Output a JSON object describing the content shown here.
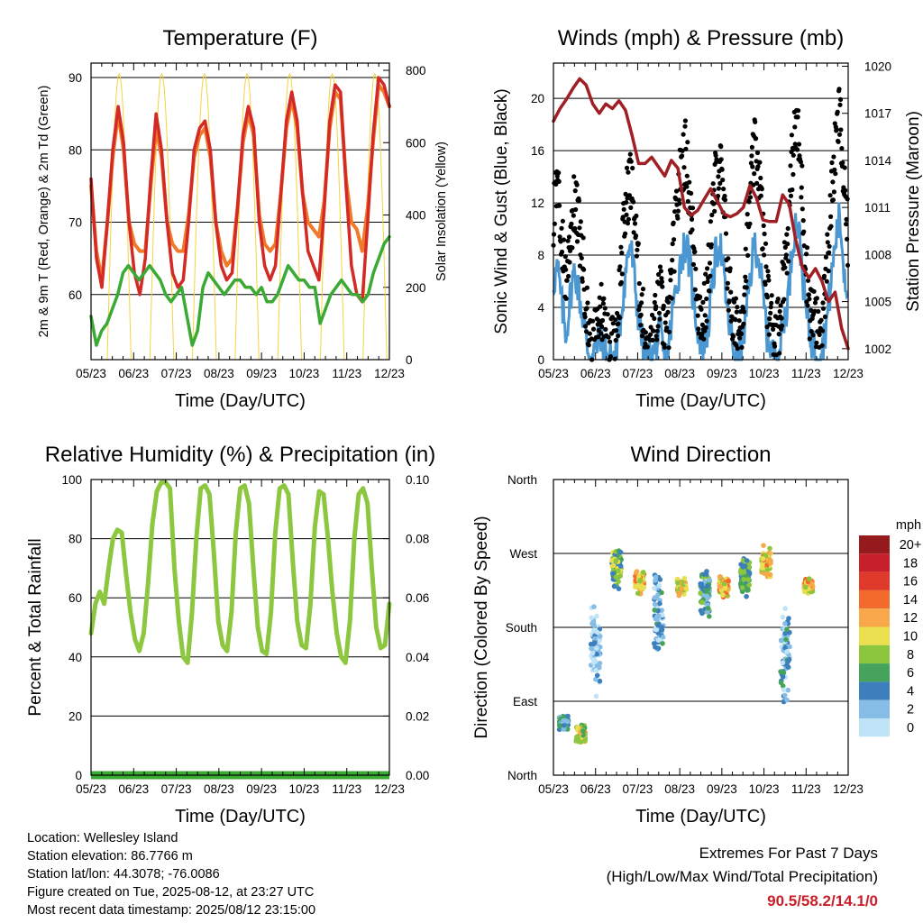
{
  "chart_data": [
    {
      "type": "line",
      "title": "Temperature (F)",
      "xlabel": "Time (Day/UTC)",
      "ylabel": "2m & 9m T (Red, Orange) & 2m Td (Green)",
      "y2label": "Solar Insolation (Yellow)",
      "x_ticks": [
        "05/23",
        "06/23",
        "07/23",
        "08/23",
        "09/23",
        "10/23",
        "11/23",
        "12/23"
      ],
      "ylim": [
        51,
        92
      ],
      "y_ticks": [
        60,
        70,
        80,
        90
      ],
      "y2lim": [
        0,
        820
      ],
      "y2_ticks": [
        0,
        200,
        400,
        600,
        800
      ],
      "grid": true,
      "series": [
        {
          "name": "2m T",
          "color": "#d42a25",
          "values": [
            76,
            65,
            61,
            70,
            80,
            86,
            81,
            70,
            63,
            60,
            65,
            76,
            85,
            80,
            70,
            63,
            61,
            62,
            70,
            80,
            83,
            84,
            80,
            70,
            64,
            62,
            63,
            72,
            82,
            86,
            83,
            70,
            64,
            62,
            64,
            74,
            84,
            88,
            84,
            74,
            66,
            64,
            62,
            72,
            84,
            89,
            88,
            75,
            64,
            60,
            59,
            70,
            82,
            90,
            89,
            86
          ]
        },
        {
          "name": "9m T",
          "color": "#f07a2a",
          "values": [
            75,
            66,
            62,
            70,
            79,
            85,
            80,
            70,
            67,
            66,
            66,
            75,
            83,
            79,
            70,
            67,
            66,
            66,
            71,
            79,
            82,
            83,
            79,
            70,
            66,
            64,
            65,
            72,
            81,
            85,
            82,
            71,
            67,
            66,
            67,
            74,
            83,
            87,
            83,
            74,
            70,
            69,
            68,
            73,
            83,
            88,
            87,
            76,
            70,
            69,
            66,
            72,
            81,
            89,
            88,
            86
          ]
        },
        {
          "name": "2m Td",
          "color": "#3aaa35",
          "values": [
            57,
            53,
            55,
            56,
            58,
            60,
            63,
            64,
            63,
            62,
            63,
            64,
            63,
            62,
            60,
            59,
            60,
            61,
            57,
            53,
            55,
            61,
            63,
            62,
            61,
            60,
            61,
            62,
            62,
            61,
            61,
            60,
            61,
            59,
            59,
            60,
            62,
            64,
            63,
            62,
            62,
            61,
            61,
            56,
            58,
            60,
            61,
            62,
            61,
            60,
            60,
            59,
            60,
            63,
            65,
            67,
            68
          ]
        },
        {
          "name": "Solar Insolation",
          "color": "#f5d43c",
          "axis": "right",
          "peak": 790
        }
      ]
    },
    {
      "type": "line",
      "title": "Winds (mph) & Pressure (mb)",
      "xlabel": "Time (Day/UTC)",
      "ylabel": "Sonic Wind & Gust (Blue, Black)",
      "y2label": "Station Pressure (Maroon)",
      "x_ticks": [
        "05/23",
        "06/23",
        "07/23",
        "08/23",
        "09/23",
        "10/23",
        "11/23",
        "12/23"
      ],
      "ylim": [
        0,
        22.7
      ],
      "y_ticks": [
        0,
        4,
        8,
        12,
        16,
        20
      ],
      "y2lim": [
        1001.3,
        1020.2
      ],
      "y2_ticks": [
        1002,
        1005,
        1008,
        1011,
        1014,
        1017,
        1020
      ],
      "grid": true,
      "series": [
        {
          "name": "Sonic Wind",
          "color": "#4a97d2",
          "values": [
            6,
            7,
            4,
            2,
            5,
            7,
            5,
            3,
            1,
            0,
            1,
            2,
            1,
            0,
            0,
            1,
            4,
            7,
            9,
            6,
            3,
            1,
            0,
            0,
            1,
            2,
            0,
            1,
            4,
            6,
            8,
            9,
            7,
            4,
            2,
            1,
            2,
            5,
            8,
            9,
            6,
            3,
            1,
            0,
            1,
            3,
            6,
            9,
            8,
            5,
            2,
            1,
            0,
            1,
            3,
            5,
            9,
            11,
            8,
            4,
            2,
            1,
            0,
            1,
            3,
            6,
            9,
            11,
            7,
            5
          ]
        },
        {
          "name": "Gust",
          "color": "#000000",
          "values": [
            11,
            13,
            9,
            6,
            10,
            12,
            10,
            7,
            3,
            1,
            2,
            4,
            3,
            1,
            1,
            3,
            8,
            12,
            14,
            11,
            6,
            3,
            1,
            1,
            3,
            5,
            2,
            3,
            8,
            12,
            15,
            16,
            12,
            8,
            4,
            3,
            5,
            10,
            14,
            15,
            11,
            6,
            3,
            2,
            3,
            7,
            12,
            16,
            15,
            10,
            5,
            3,
            2,
            3,
            7,
            10,
            16,
            18,
            14,
            8,
            4,
            3,
            2,
            3,
            7,
            12,
            16,
            19,
            13,
            9
          ]
        },
        {
          "name": "Station Pressure",
          "color": "#a01f24",
          "axis": "right",
          "values": [
            1016.5,
            1017.3,
            1017.9,
            1018.6,
            1019.2,
            1018.8,
            1017.6,
            1017.0,
            1017.6,
            1017.3,
            1017.8,
            1017.2,
            1015.6,
            1013.8,
            1013.8,
            1014.2,
            1013.6,
            1013.0,
            1014.0,
            1013.5,
            1011.0,
            1010.5,
            1010.8,
            1011.5,
            1012.2,
            1011.4,
            1010.6,
            1010.4,
            1010.6,
            1011.0,
            1012.4,
            1011.6,
            1010.2,
            1010.1,
            1010.1,
            1011.8,
            1011.2,
            1008.9,
            1007.2,
            1006.5,
            1007.1,
            1006.3,
            1005.0,
            1005.6,
            1003.3,
            1002.0
          ]
        }
      ]
    },
    {
      "type": "line",
      "title": "Relative Humidity (%) & Precipitation (in)",
      "xlabel": "Time (Day/UTC)",
      "ylabel": "Percent & Total Rainfall",
      "x_ticks": [
        "05/23",
        "06/23",
        "07/23",
        "08/23",
        "09/23",
        "10/23",
        "11/23",
        "12/23"
      ],
      "ylim": [
        0,
        100
      ],
      "y_ticks": [
        0,
        20,
        40,
        60,
        80,
        100
      ],
      "y2lim": [
        0,
        0.1
      ],
      "y2_ticks": [
        "0.00",
        "0.02",
        "0.04",
        "0.06",
        "0.08",
        "0.10"
      ],
      "grid": true,
      "series": [
        {
          "name": "Relative Humidity",
          "color": "#8dc63f",
          "values": [
            48,
            58,
            62,
            58,
            70,
            80,
            83,
            82,
            68,
            55,
            46,
            42,
            48,
            65,
            85,
            96,
            99,
            99,
            97,
            70,
            52,
            40,
            38,
            55,
            80,
            97,
            98,
            95,
            75,
            52,
            44,
            42,
            55,
            82,
            97,
            98,
            92,
            70,
            50,
            42,
            41,
            55,
            82,
            97,
            98,
            95,
            72,
            52,
            44,
            43,
            58,
            84,
            96,
            95,
            80,
            62,
            48,
            40,
            38,
            52,
            80,
            95,
            97,
            92,
            70,
            50,
            43,
            44,
            58
          ]
        },
        {
          "name": "Total Precipitation",
          "color": "#3aaa35",
          "axis": "right",
          "values": [
            0,
            0
          ]
        }
      ]
    },
    {
      "type": "scatter",
      "title": "Wind Direction",
      "xlabel": "Time (Day/UTC)",
      "ylabel": "Direction (Colored By Speed)",
      "x_ticks": [
        "05/23",
        "06/23",
        "07/23",
        "08/23",
        "09/23",
        "10/23",
        "11/23",
        "12/23"
      ],
      "y_ticks": [
        "North",
        "East",
        "South",
        "West",
        "North"
      ],
      "ylim": [
        0,
        360
      ],
      "grid": true,
      "legend_title": "mph",
      "legend_labels": [
        "20+",
        "18",
        "16",
        "14",
        "12",
        "10",
        "8",
        "6",
        "4",
        "2",
        "0"
      ],
      "legend_colors": [
        "#951b1e",
        "#c8202a",
        "#e03a2a",
        "#f26a2c",
        "#f8a84a",
        "#e9df4f",
        "#8cc63e",
        "#46a35c",
        "#3d7fbd",
        "#86bde6",
        "#bfe3f7"
      ],
      "legend_placement": "right",
      "clusters": [
        {
          "day": 0.25,
          "dir": 65,
          "spread": 10,
          "speed": 4
        },
        {
          "day": 0.65,
          "dir": 50,
          "spread": 12,
          "speed": 9
        },
        {
          "day": 1.0,
          "dir": 150,
          "spread": 60,
          "speed": 2
        },
        {
          "day": 1.5,
          "dir": 250,
          "spread": 25,
          "speed": 7
        },
        {
          "day": 2.05,
          "dir": 235,
          "spread": 15,
          "speed": 11
        },
        {
          "day": 2.5,
          "dir": 200,
          "spread": 60,
          "speed": 3
        },
        {
          "day": 3.05,
          "dir": 230,
          "spread": 12,
          "speed": 10
        },
        {
          "day": 3.6,
          "dir": 220,
          "spread": 30,
          "speed": 5
        },
        {
          "day": 4.05,
          "dir": 230,
          "spread": 14,
          "speed": 11
        },
        {
          "day": 4.55,
          "dir": 240,
          "spread": 25,
          "speed": 6
        },
        {
          "day": 5.05,
          "dir": 260,
          "spread": 20,
          "speed": 11
        },
        {
          "day": 5.5,
          "dir": 150,
          "spread": 70,
          "speed": 3
        },
        {
          "day": 6.05,
          "dir": 230,
          "spread": 10,
          "speed": 11
        }
      ]
    }
  ],
  "info": {
    "location": "Location: Wellesley Island",
    "elevation": "Station elevation: 86.7766 m",
    "latlon": "Station lat/lon: 44.3078; -76.0086",
    "created": "Figure created on Tue, 2025-08-12, at 23:27 UTC",
    "recent": "Most recent data timestamp: 2025/08/12 23:15:00"
  },
  "extremes": {
    "line1": "Extremes For Past 7 Days",
    "line2": "(High/Low/Max Wind/Total Precipitation)",
    "values": "90.5/58.2/14.1/0"
  }
}
